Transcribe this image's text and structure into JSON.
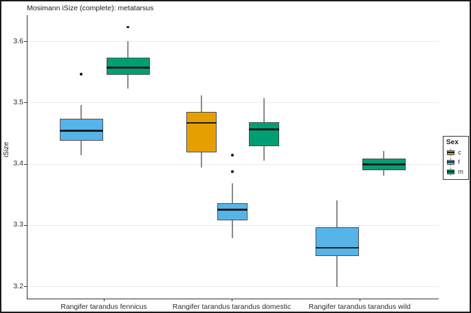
{
  "chart_data": {
    "type": "boxplot",
    "title": "Mosimann iSize (complete): metatarsus",
    "xlabel": "",
    "ylabel": "iSize",
    "y_ticks": [
      3.2,
      3.3,
      3.4,
      3.5,
      3.6
    ],
    "ylim": [
      3.18,
      3.643
    ],
    "grid": "horizontal dotted",
    "categories": [
      "Rangifer tarandus fennicus",
      "Rangifer tarandus tarandus domestic",
      "Rangifer tarandus tarandus wild"
    ],
    "legend": {
      "title": "Sex",
      "position": "right",
      "entries": [
        {
          "label": "c",
          "color": "#E69F00"
        },
        {
          "label": "f",
          "color": "#56B4E9"
        },
        {
          "label": "m",
          "color": "#009E73"
        }
      ]
    },
    "series": [
      {
        "category": "Rangifer tarandus fennicus",
        "sex": "f",
        "color": "#56B4E9",
        "whisker_low": 3.414,
        "q1": 3.438,
        "median": 3.454,
        "q3": 3.473,
        "whisker_high": 3.496,
        "outliers": [
          3.546
        ]
      },
      {
        "category": "Rangifer tarandus fennicus",
        "sex": "m",
        "color": "#009E73",
        "whisker_low": 3.523,
        "q1": 3.545,
        "median": 3.557,
        "q3": 3.573,
        "whisker_high": 3.6,
        "outliers": [
          3.623
        ]
      },
      {
        "category": "Rangifer tarandus tarandus domestic",
        "sex": "c",
        "color": "#E69F00",
        "whisker_low": 3.394,
        "q1": 3.419,
        "median": 3.467,
        "q3": 3.485,
        "whisker_high": 3.512,
        "outliers": []
      },
      {
        "category": "Rangifer tarandus tarandus domestic",
        "sex": "f",
        "color": "#56B4E9",
        "whisker_low": 3.279,
        "q1": 3.308,
        "median": 3.325,
        "q3": 3.336,
        "whisker_high": 3.368,
        "outliers": [
          3.414,
          3.387
        ]
      },
      {
        "category": "Rangifer tarandus tarandus domestic",
        "sex": "m",
        "color": "#009E73",
        "whisker_low": 3.405,
        "q1": 3.429,
        "median": 3.456,
        "q3": 3.468,
        "whisker_high": 3.507,
        "outliers": []
      },
      {
        "category": "Rangifer tarandus tarandus wild",
        "sex": "f",
        "color": "#56B4E9",
        "whisker_low": 3.199,
        "q1": 3.249,
        "median": 3.263,
        "q3": 3.296,
        "whisker_high": 3.34,
        "outliers": []
      },
      {
        "category": "Rangifer tarandus tarandus wild",
        "sex": "m",
        "color": "#009E73",
        "whisker_low": 3.381,
        "q1": 3.389,
        "median": 3.399,
        "q3": 3.409,
        "whisker_high": 3.421,
        "outliers": []
      }
    ]
  }
}
